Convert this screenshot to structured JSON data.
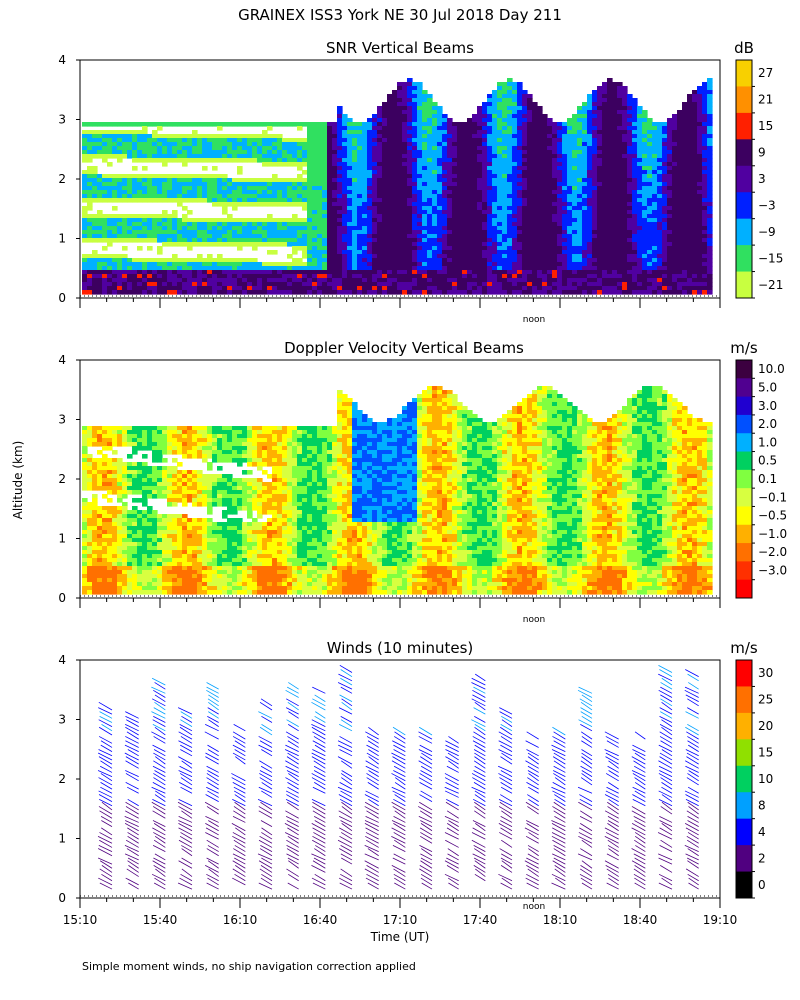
{
  "title": "GRAINEX ISS3 York NE  30 Jul 2018 Day 211",
  "y_axis_label": "Altitude (km)",
  "x_axis_label": "Time (UT)",
  "footnote": "Simple moment winds, no ship navigation correction applied",
  "noon_label": "noon",
  "chart_data": [
    {
      "type": "heatmap",
      "title": "SNR Vertical Beams",
      "xlim": [
        "15:10",
        "19:10"
      ],
      "ylim": [
        0,
        4
      ],
      "y_ticks": [
        0,
        1,
        2,
        3,
        4
      ],
      "colorbar": {
        "unit": "dB",
        "labels": [
          "27",
          "21",
          "15",
          "9",
          "3",
          "−3",
          "−9",
          "−15",
          "−21"
        ],
        "colors": [
          "#f8d000",
          "#ff9000",
          "#ff2000",
          "#3c0060",
          "#5000a0",
          "#0020ff",
          "#00b0ff",
          "#30e060",
          "#c8ff40"
        ]
      }
    },
    {
      "type": "heatmap",
      "title": "Doppler Velocity Vertical Beams",
      "xlim": [
        "15:10",
        "19:10"
      ],
      "ylim": [
        0,
        4
      ],
      "y_ticks": [
        0,
        1,
        2,
        3,
        4
      ],
      "colorbar": {
        "unit": "m/s",
        "labels": [
          "10.0",
          "5.0",
          "3.0",
          "2.0",
          "1.0",
          "0.5",
          "0.1",
          "−0.1",
          "−0.5",
          "−1.0",
          "−2.0",
          "−3.0"
        ],
        "colors": [
          "#3c0040",
          "#500090",
          "#2000d0",
          "#0050ff",
          "#00b0ff",
          "#00d060",
          "#80ff40",
          "#d8ff40",
          "#ffff00",
          "#ffb000",
          "#ff7000",
          "#ff3000",
          "#ff0000"
        ]
      }
    },
    {
      "type": "scatter",
      "title": "Winds (10 minutes)",
      "xlim": [
        "15:10",
        "19:10"
      ],
      "ylim": [
        0,
        4
      ],
      "y_ticks": [
        0,
        1,
        2,
        3,
        4
      ],
      "x_tick_labels": [
        "15:10",
        "15:40",
        "16:10",
        "16:40",
        "17:10",
        "17:40",
        "18:10",
        "18:40",
        "19:10"
      ],
      "colorbar": {
        "unit": "m/s",
        "labels": [
          "30",
          "25",
          "20",
          "15",
          "10",
          "8",
          "4",
          "2",
          "0"
        ],
        "colors": [
          "#ff0000",
          "#ff7000",
          "#ffb000",
          "#90e000",
          "#00d060",
          "#00a0ff",
          "#0000ff",
          "#500080",
          "#000000"
        ]
      }
    }
  ]
}
